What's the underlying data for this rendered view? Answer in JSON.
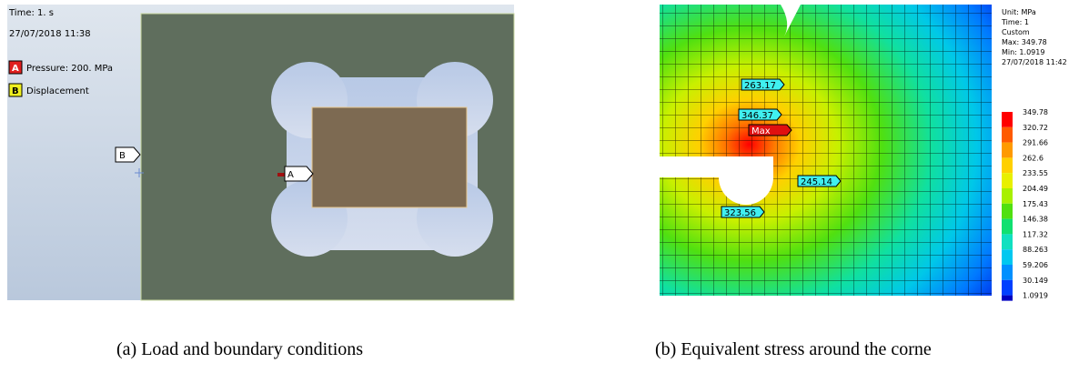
{
  "left": {
    "time": "Time: 1. s",
    "date": "27/07/2018 11:38",
    "legend": [
      {
        "key": "A",
        "label": "Pressure: 200. MPa"
      },
      {
        "key": "B",
        "label": "Displacement"
      }
    ],
    "tags": [
      "B",
      "A"
    ]
  },
  "right": {
    "header": [
      "Unit: MPa",
      "Time: 1",
      "Custom",
      "Max: 349.78",
      "Min: 1.0919",
      "27/07/2018 11:42"
    ],
    "scale": [
      "349.78",
      "320.72",
      "291.66",
      "262.6",
      "233.55",
      "204.49",
      "175.43",
      "146.38",
      "117.32",
      "88.263",
      "59.206",
      "30.149",
      "1.0919"
    ],
    "probes": [
      "263.17",
      "346.37",
      "Max",
      "245.14",
      "323.56"
    ]
  },
  "captions": [
    "(a) Load and boundary conditions",
    "(b) Equivalent stress around the corne"
  ]
}
